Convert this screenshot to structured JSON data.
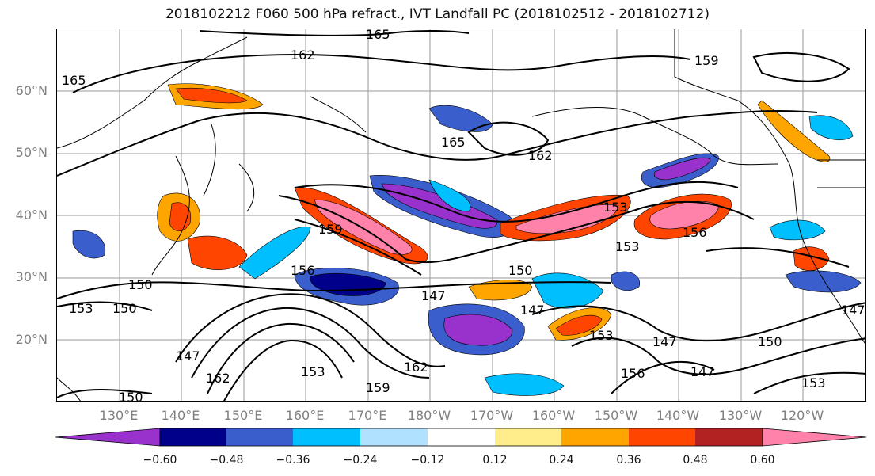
{
  "title": "2018102212 F060 500 hPa refract., IVT Landfall PC (2018102512 - 2018102712)",
  "lat_labels": [
    "60°N",
    "50°N",
    "40°N",
    "30°N",
    "20°N"
  ],
  "lon_labels": [
    "130°E",
    "140°E",
    "150°E",
    "160°E",
    "170°E",
    "180°W",
    "170°W",
    "160°W",
    "150°W",
    "140°W",
    "130°W",
    "120°W"
  ],
  "contour_labels": [
    "165",
    "162",
    "159",
    "165",
    "165",
    "162",
    "159",
    "153",
    "156",
    "153",
    "156",
    "150",
    "147",
    "150",
    "153",
    "150",
    "147",
    "162",
    "150",
    "153",
    "159",
    "162",
    "147",
    "153",
    "147",
    "150",
    "156",
    "147",
    "153",
    "147"
  ],
  "colorbar": {
    "tick_labels": [
      "−0.60",
      "−0.48",
      "−0.36",
      "−0.24",
      "−0.12",
      "0.12",
      "0.24",
      "0.36",
      "0.48",
      "0.60"
    ],
    "colors": [
      "#9932cc",
      "#00008b",
      "#3a5fcd",
      "#00bfff",
      "#b0e2ff",
      "#ffffff",
      "#ffec8b",
      "#ffa500",
      "#ff4500",
      "#b22222",
      "#ff82ab"
    ]
  }
}
